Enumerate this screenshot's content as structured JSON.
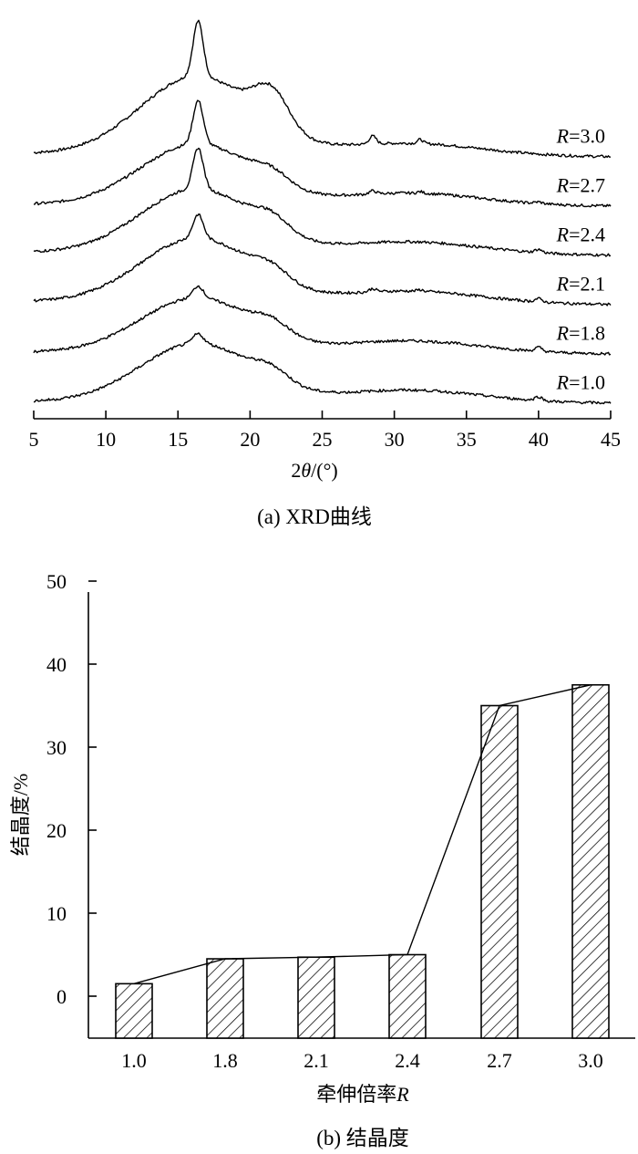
{
  "chart_data": [
    {
      "type": "line",
      "caption": "(a) XRD曲线",
      "xlabel_prefix": "2",
      "xlabel_symbol": "θ",
      "xlabel_unit": "/(°)",
      "xlim": [
        5,
        45
      ],
      "xticks": [
        5,
        10,
        15,
        20,
        25,
        30,
        35,
        40,
        45
      ],
      "series": [
        {
          "name": "R=3.0",
          "sym": "R",
          "val": "=3.0",
          "order": 5,
          "baseline": 0.1,
          "main": 1.0,
          "sharp": 0.7,
          "shoulder": 0.45,
          "sharp2": [
            0.1,
            0.05,
            0.0
          ]
        },
        {
          "name": "R=2.7",
          "sym": "R",
          "val": "=2.7",
          "order": 4,
          "baseline": 0.05,
          "main": 0.78,
          "sharp": 0.55,
          "shoulder": 0.15,
          "sharp2": [
            0.04,
            0.02,
            0.02
          ]
        },
        {
          "name": "R=2.4",
          "sym": "R",
          "val": "=2.4",
          "order": 3,
          "baseline": 0.1,
          "main": 0.82,
          "sharp": 0.52,
          "shoulder": 0.18,
          "sharp2": [
            0.0,
            0.0,
            0.04
          ]
        },
        {
          "name": "R=2.1",
          "sym": "R",
          "val": "=2.1",
          "order": 2,
          "baseline": 0.1,
          "main": 0.82,
          "sharp": 0.3,
          "shoulder": 0.16,
          "sharp2": [
            0.04,
            0.02,
            0.04
          ]
        },
        {
          "name": "R=1.8",
          "sym": "R",
          "val": "=1.8",
          "order": 1,
          "baseline": 0.05,
          "main": 0.7,
          "sharp": 0.15,
          "shoulder": 0.15,
          "sharp2": [
            0.0,
            0.0,
            0.05
          ]
        },
        {
          "name": "R=1.0",
          "sym": "R",
          "val": "=1.0",
          "order": 0,
          "baseline": 0.05,
          "main": 0.75,
          "sharp": 0.12,
          "shoulder": 0.15,
          "sharp2": [
            0.0,
            0.0,
            0.05
          ]
        }
      ]
    },
    {
      "type": "bar",
      "caption": "(b) 结晶度",
      "xlabel_text": "牵伸倍率",
      "xlabel_symbol": "R",
      "ylabel": "结晶度/%",
      "ylim": [
        -5,
        50
      ],
      "yticks": [
        0,
        10,
        20,
        30,
        40,
        50
      ],
      "categories": [
        "1.0",
        "1.8",
        "2.1",
        "2.4",
        "2.7",
        "3.0"
      ],
      "values": [
        1.5,
        4.5,
        4.7,
        5.0,
        35.0,
        37.5
      ],
      "trend_line": true,
      "hatch": "diagonal"
    }
  ]
}
